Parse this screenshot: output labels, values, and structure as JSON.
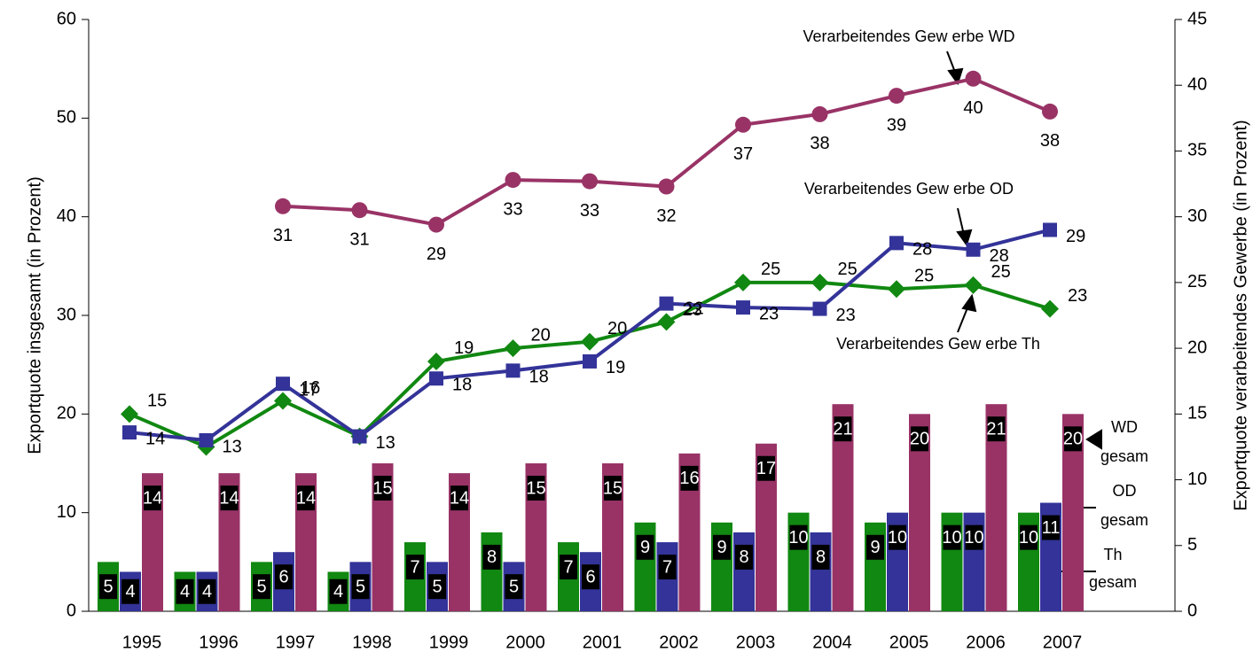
{
  "chart_data": {
    "type": "bar_line_combo",
    "y_label": "Exportquote insgesamt (in Prozent)",
    "y2_label": "Exportquote verarbeitendes Gewerbe (in Prozent)",
    "categories": [
      "1995",
      "1996",
      "1997",
      "1998",
      "1999",
      "2000",
      "2001",
      "2002",
      "2003",
      "2004",
      "2005",
      "2006",
      "2007"
    ],
    "ylim": [
      0,
      60
    ],
    "yticks": [
      0,
      10,
      20,
      30,
      40,
      50,
      60
    ],
    "y2lim": [
      0,
      45
    ],
    "y2ticks": [
      0,
      5,
      10,
      15,
      20,
      25,
      30,
      35,
      40,
      45
    ],
    "series": [
      {
        "name": "Th gesam",
        "type": "bar",
        "color": "#118811",
        "values": [
          5,
          4,
          5,
          4,
          7,
          8,
          7,
          9,
          9,
          10,
          9,
          10,
          10
        ]
      },
      {
        "name": "OD gesam",
        "type": "bar",
        "color": "#333399",
        "values": [
          4,
          4,
          6,
          5,
          5,
          5,
          6,
          7,
          8,
          8,
          10,
          10,
          11
        ]
      },
      {
        "name": "WD gesam",
        "type": "bar",
        "color": "#993366",
        "values": [
          14,
          14,
          14,
          15,
          14,
          15,
          15,
          16,
          17,
          21,
          20,
          21,
          20
        ]
      },
      {
        "name": "Verarbeitendes Gew erbe Th",
        "type": "line",
        "axis": "y2",
        "marker": "diamond",
        "color": "#118811",
        "values": [
          15,
          12.5,
          16,
          13.3,
          19,
          20,
          20.5,
          22,
          25,
          25,
          24.5,
          24.8,
          23
        ],
        "value_labels": [
          "15",
          null,
          "16",
          null,
          "19",
          "20",
          "20",
          "22",
          "25",
          "25",
          "25",
          "25",
          "23"
        ]
      },
      {
        "name": "Verarbeitendes Gew erbe OD",
        "type": "line",
        "axis": "y2",
        "marker": "square",
        "color": "#333399",
        "values": [
          13.6,
          13,
          17.3,
          13.3,
          17.7,
          18.3,
          19,
          23.4,
          23.1,
          23,
          28,
          27.5,
          29
        ],
        "value_labels": [
          "14",
          "13",
          "17",
          "13",
          "18",
          "18",
          "19",
          "23",
          "23",
          "23",
          "28",
          "28",
          "29"
        ]
      },
      {
        "name": "Verarbeitendes Gew erbe WD",
        "type": "line",
        "axis": "y2",
        "marker": "circle",
        "color": "#993366",
        "values": [
          null,
          null,
          30.8,
          30.5,
          29.4,
          32.8,
          32.7,
          32.3,
          37,
          37.8,
          39.2,
          40.5,
          38
        ],
        "value_labels": [
          null,
          null,
          "31",
          "31",
          "29",
          "33",
          "33",
          "32",
          "37",
          "38",
          "39",
          "40",
          "38"
        ]
      }
    ]
  }
}
